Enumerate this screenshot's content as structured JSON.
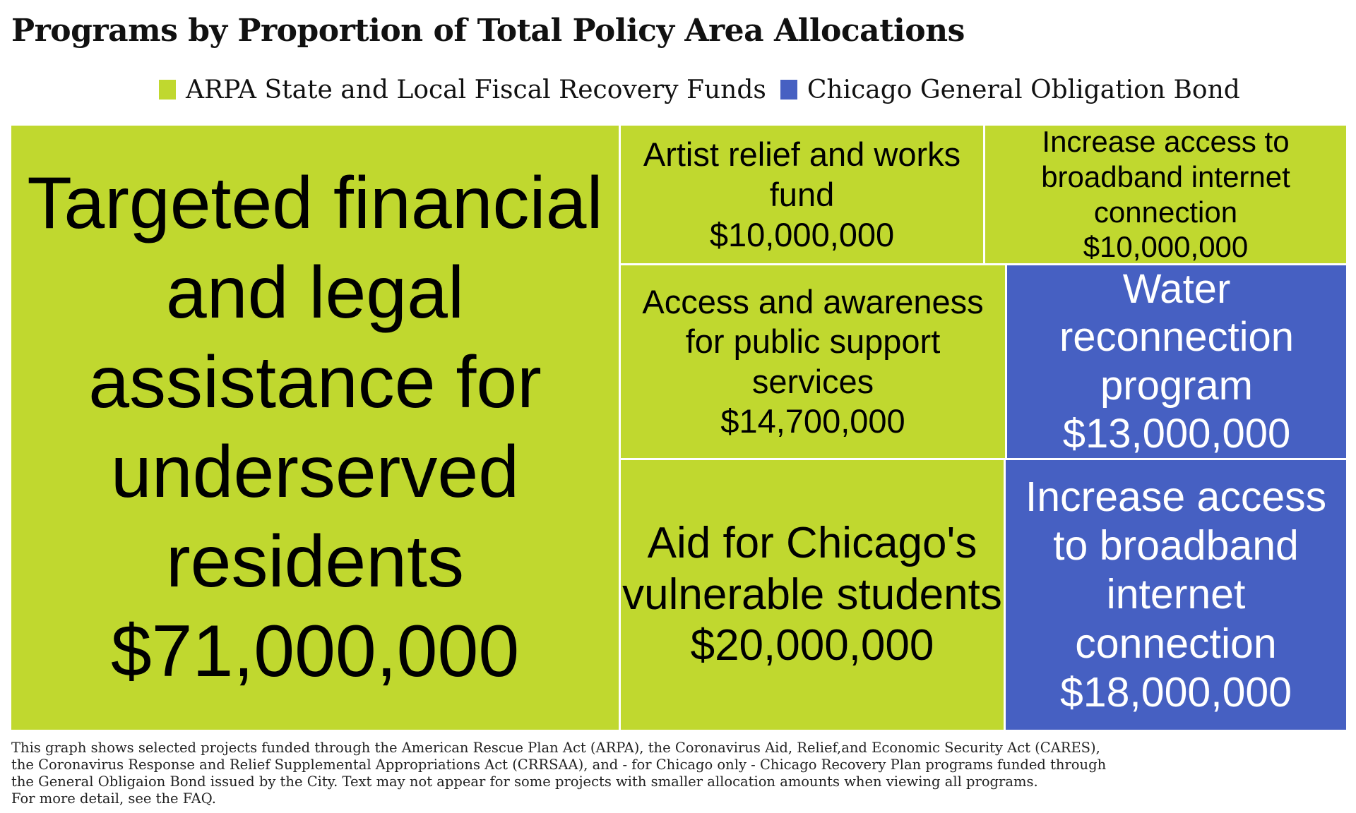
{
  "title": "Programs by Proportion of Total Policy Area Allocations",
  "legend": [
    {
      "label": "ARPA State and Local Fiscal Recovery Funds",
      "color": "#c0d82f"
    },
    {
      "label": "Chicago General Obligation Bond",
      "color": "#4660c2"
    }
  ],
  "chart_data": {
    "type": "treemap",
    "title": "Programs by Proportion of Total Policy Area Allocations",
    "series": [
      {
        "name": "ARPA State and Local Fiscal Recovery Funds",
        "color": "#c0d82f",
        "text_color": "#000000"
      },
      {
        "name": "Chicago General Obligation Bond",
        "color": "#4660c2",
        "text_color": "#ffffff"
      }
    ],
    "items": [
      {
        "label": "Targeted financial and legal assistance for underserved residents",
        "value": 71000000,
        "value_label": "$71,000,000",
        "series": "ARPA State and Local Fiscal Recovery Funds"
      },
      {
        "label": "Artist relief and works fund",
        "value": 10000000,
        "value_label": "$10,000,000",
        "series": "ARPA State and Local Fiscal Recovery Funds"
      },
      {
        "label": "Increase access to broadband internet connection",
        "value": 10000000,
        "value_label": "$10,000,000",
        "series": "ARPA State and Local Fiscal Recovery Funds"
      },
      {
        "label": "Access and awareness for public support services",
        "value": 14700000,
        "value_label": "$14,700,000",
        "series": "ARPA State and Local Fiscal Recovery Funds"
      },
      {
        "label": "Water reconnection program",
        "value": 13000000,
        "value_label": "$13,000,000",
        "series": "Chicago General Obligation Bond"
      },
      {
        "label": "Aid for Chicago's vulnerable students",
        "value": 20000000,
        "value_label": "$20,000,000",
        "series": "ARPA State and Local Fiscal Recovery Funds"
      },
      {
        "label": "Increase access to broadband internet connection",
        "value": 18000000,
        "value_label": "$18,000,000",
        "series": "Chicago General Obligation Bond"
      }
    ]
  },
  "footnote": [
    "This graph shows selected projects funded through the American Rescue Plan Act (ARPA), the Coronavirus Aid, Relief,and Economic Security Act (CARES),",
    "the Coronavirus Response and Relief Supplemental Appropriations Act (CRRSAA), and - for Chicago only - Chicago Recovery Plan programs funded through",
    "the General Obligaion Bond issued by the City. Text may not appear for some projects with smaller allocation amounts when viewing all programs.",
    "For more detail, see the FAQ."
  ]
}
